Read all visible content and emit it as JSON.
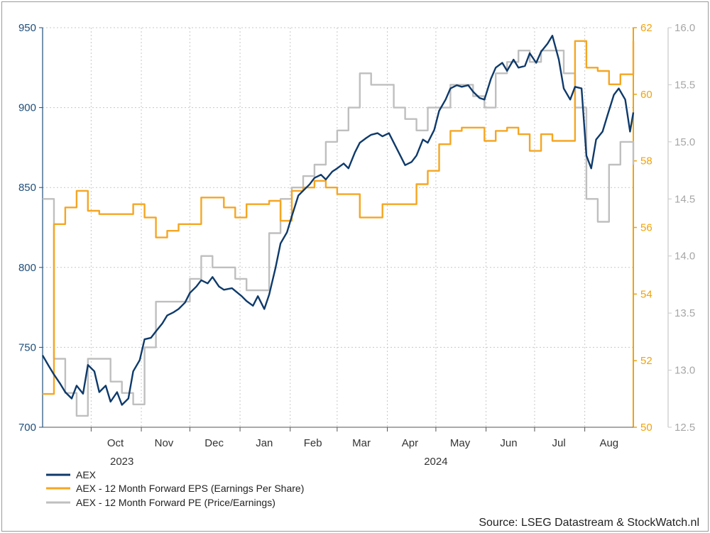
{
  "chart_data": {
    "type": "line",
    "x_axis": {
      "month_labels": [
        "Oct",
        "Nov",
        "Dec",
        "Jan",
        "Feb",
        "Mar",
        "Apr",
        "May",
        "Jun",
        "Jul",
        "Aug"
      ],
      "year_labels": [
        "2023",
        "2024"
      ],
      "range": [
        "2023-09-01",
        "2024-08-31"
      ]
    },
    "y_axes": {
      "left": {
        "series": "AEX",
        "ticks": [
          "700",
          "750",
          "800",
          "850",
          "900",
          "950"
        ],
        "range": [
          700,
          950
        ],
        "color": "#1f4e79"
      },
      "right1": {
        "series": "EPS",
        "ticks": [
          "50",
          "52",
          "54",
          "56",
          "58",
          "60",
          "62"
        ],
        "range": [
          50,
          62
        ],
        "color": "#f0a30a"
      },
      "right2": {
        "series": "PE",
        "ticks": [
          "12.5",
          "13.0",
          "13.5",
          "14.0",
          "14.5",
          "15.0",
          "15.5",
          "16.0"
        ],
        "range": [
          12.5,
          16.0
        ],
        "color": "#a6a6a6"
      }
    },
    "grid": true,
    "legend_position": "bottom-left",
    "series": [
      {
        "name": "AEX",
        "axis": "left",
        "color": "#0e3a6b",
        "points": [
          [
            "2023-09-01",
            745
          ],
          [
            "2023-09-05",
            738
          ],
          [
            "2023-09-08",
            733
          ],
          [
            "2023-09-12",
            727
          ],
          [
            "2023-09-15",
            722
          ],
          [
            "2023-09-19",
            718
          ],
          [
            "2023-09-22",
            726
          ],
          [
            "2023-09-26",
            721
          ],
          [
            "2023-09-29",
            739
          ],
          [
            "2023-10-03",
            735
          ],
          [
            "2023-10-06",
            722
          ],
          [
            "2023-10-10",
            726
          ],
          [
            "2023-10-13",
            716
          ],
          [
            "2023-10-17",
            722
          ],
          [
            "2023-10-20",
            714
          ],
          [
            "2023-10-24",
            718
          ],
          [
            "2023-10-27",
            735
          ],
          [
            "2023-10-31",
            742
          ],
          [
            "2023-11-03",
            755
          ],
          [
            "2023-11-07",
            756
          ],
          [
            "2023-11-10",
            760
          ],
          [
            "2023-11-14",
            765
          ],
          [
            "2023-11-17",
            770
          ],
          [
            "2023-11-21",
            772
          ],
          [
            "2023-11-24",
            774
          ],
          [
            "2023-11-28",
            778
          ],
          [
            "2023-12-01",
            784
          ],
          [
            "2023-12-05",
            788
          ],
          [
            "2023-12-08",
            792
          ],
          [
            "2023-12-12",
            790
          ],
          [
            "2023-12-15",
            794
          ],
          [
            "2023-12-19",
            788
          ],
          [
            "2023-12-22",
            786
          ],
          [
            "2023-12-27",
            787
          ],
          [
            "2024-01-02",
            782
          ],
          [
            "2024-01-05",
            779
          ],
          [
            "2024-01-09",
            776
          ],
          [
            "2024-01-12",
            782
          ],
          [
            "2024-01-16",
            774
          ],
          [
            "2024-01-19",
            783
          ],
          [
            "2024-01-23",
            800
          ],
          [
            "2024-01-26",
            815
          ],
          [
            "2024-01-30",
            822
          ],
          [
            "2024-02-02",
            832
          ],
          [
            "2024-02-06",
            845
          ],
          [
            "2024-02-09",
            848
          ],
          [
            "2024-02-13",
            852
          ],
          [
            "2024-02-16",
            856
          ],
          [
            "2024-02-20",
            858
          ],
          [
            "2024-02-23",
            855
          ],
          [
            "2024-02-27",
            860
          ],
          [
            "2024-03-01",
            862
          ],
          [
            "2024-03-05",
            865
          ],
          [
            "2024-03-08",
            862
          ],
          [
            "2024-03-12",
            872
          ],
          [
            "2024-03-15",
            878
          ],
          [
            "2024-03-19",
            881
          ],
          [
            "2024-03-22",
            883
          ],
          [
            "2024-03-26",
            884
          ],
          [
            "2024-03-29",
            882
          ],
          [
            "2024-04-02",
            884
          ],
          [
            "2024-04-05",
            878
          ],
          [
            "2024-04-09",
            870
          ],
          [
            "2024-04-12",
            864
          ],
          [
            "2024-04-16",
            866
          ],
          [
            "2024-04-19",
            870
          ],
          [
            "2024-04-23",
            880
          ],
          [
            "2024-04-26",
            878
          ],
          [
            "2024-04-30",
            886
          ],
          [
            "2024-05-03",
            898
          ],
          [
            "2024-05-07",
            905
          ],
          [
            "2024-05-10",
            912
          ],
          [
            "2024-05-14",
            914
          ],
          [
            "2024-05-17",
            913
          ],
          [
            "2024-05-21",
            914
          ],
          [
            "2024-05-24",
            910
          ],
          [
            "2024-05-28",
            906
          ],
          [
            "2024-05-31",
            905
          ],
          [
            "2024-06-04",
            918
          ],
          [
            "2024-06-07",
            925
          ],
          [
            "2024-06-11",
            928
          ],
          [
            "2024-06-14",
            923
          ],
          [
            "2024-06-18",
            930
          ],
          [
            "2024-06-21",
            925
          ],
          [
            "2024-06-25",
            926
          ],
          [
            "2024-06-28",
            934
          ],
          [
            "2024-07-02",
            928
          ],
          [
            "2024-07-05",
            935
          ],
          [
            "2024-07-09",
            940
          ],
          [
            "2024-07-12",
            945
          ],
          [
            "2024-07-16",
            930
          ],
          [
            "2024-07-19",
            912
          ],
          [
            "2024-07-23",
            905
          ],
          [
            "2024-07-26",
            913
          ],
          [
            "2024-07-30",
            912
          ],
          [
            "2024-08-02",
            870
          ],
          [
            "2024-08-05",
            862
          ],
          [
            "2024-08-08",
            880
          ],
          [
            "2024-08-12",
            885
          ],
          [
            "2024-08-15",
            895
          ],
          [
            "2024-08-19",
            908
          ],
          [
            "2024-08-22",
            912
          ],
          [
            "2024-08-26",
            905
          ],
          [
            "2024-08-29",
            885
          ],
          [
            "2024-08-31",
            897
          ]
        ]
      },
      {
        "name": "AEX - 12 Month Forward EPS (Earnings Per Share)",
        "axis": "right1",
        "color": "#f5a623",
        "points": [
          [
            "2023-09-01",
            51.0
          ],
          [
            "2023-09-08",
            56.1
          ],
          [
            "2023-09-15",
            56.6
          ],
          [
            "2023-09-22",
            57.1
          ],
          [
            "2023-09-29",
            56.5
          ],
          [
            "2023-10-06",
            56.4
          ],
          [
            "2023-10-13",
            56.4
          ],
          [
            "2023-10-20",
            56.4
          ],
          [
            "2023-10-27",
            56.7
          ],
          [
            "2023-11-03",
            56.3
          ],
          [
            "2023-11-10",
            55.7
          ],
          [
            "2023-11-17",
            55.9
          ],
          [
            "2023-11-24",
            56.1
          ],
          [
            "2023-12-01",
            56.1
          ],
          [
            "2023-12-08",
            56.9
          ],
          [
            "2023-12-15",
            56.9
          ],
          [
            "2023-12-22",
            56.6
          ],
          [
            "2023-12-29",
            56.3
          ],
          [
            "2024-01-05",
            56.7
          ],
          [
            "2024-01-12",
            56.7
          ],
          [
            "2024-01-19",
            56.8
          ],
          [
            "2024-01-26",
            56.2
          ],
          [
            "2024-02-02",
            57.1
          ],
          [
            "2024-02-09",
            57.2
          ],
          [
            "2024-02-16",
            57.4
          ],
          [
            "2024-02-23",
            57.2
          ],
          [
            "2024-03-01",
            57.0
          ],
          [
            "2024-03-08",
            57.0
          ],
          [
            "2024-03-15",
            56.3
          ],
          [
            "2024-03-22",
            56.3
          ],
          [
            "2024-03-29",
            56.7
          ],
          [
            "2024-04-05",
            56.7
          ],
          [
            "2024-04-12",
            56.7
          ],
          [
            "2024-04-19",
            57.3
          ],
          [
            "2024-04-26",
            57.7
          ],
          [
            "2024-05-03",
            58.5
          ],
          [
            "2024-05-10",
            58.9
          ],
          [
            "2024-05-17",
            59.0
          ],
          [
            "2024-05-24",
            59.0
          ],
          [
            "2024-05-31",
            58.6
          ],
          [
            "2024-06-07",
            58.9
          ],
          [
            "2024-06-14",
            59.0
          ],
          [
            "2024-06-21",
            58.8
          ],
          [
            "2024-06-28",
            58.3
          ],
          [
            "2024-07-05",
            58.8
          ],
          [
            "2024-07-12",
            58.6
          ],
          [
            "2024-07-19",
            58.6
          ],
          [
            "2024-07-26",
            61.6
          ],
          [
            "2024-08-02",
            60.8
          ],
          [
            "2024-08-09",
            60.7
          ],
          [
            "2024-08-16",
            60.3
          ],
          [
            "2024-08-23",
            60.6
          ],
          [
            "2024-08-31",
            61.6
          ]
        ]
      },
      {
        "name": "AEX - 12 Month Forward PE (Price/Earnings)",
        "axis": "right2",
        "color": "#bfbfbf",
        "points": [
          [
            "2023-09-01",
            14.5
          ],
          [
            "2023-09-08",
            13.1
          ],
          [
            "2023-09-15",
            12.8
          ],
          [
            "2023-09-22",
            12.6
          ],
          [
            "2023-09-29",
            13.1
          ],
          [
            "2023-10-06",
            13.1
          ],
          [
            "2023-10-13",
            12.9
          ],
          [
            "2023-10-20",
            12.8
          ],
          [
            "2023-10-27",
            12.7
          ],
          [
            "2023-11-03",
            13.2
          ],
          [
            "2023-11-10",
            13.6
          ],
          [
            "2023-11-17",
            13.6
          ],
          [
            "2023-11-24",
            13.6
          ],
          [
            "2023-12-01",
            13.8
          ],
          [
            "2023-12-08",
            14.0
          ],
          [
            "2023-12-15",
            13.9
          ],
          [
            "2023-12-22",
            13.9
          ],
          [
            "2023-12-29",
            13.8
          ],
          [
            "2024-01-05",
            13.7
          ],
          [
            "2024-01-12",
            13.7
          ],
          [
            "2024-01-19",
            14.2
          ],
          [
            "2024-01-26",
            14.5
          ],
          [
            "2024-02-02",
            14.6
          ],
          [
            "2024-02-09",
            14.7
          ],
          [
            "2024-02-16",
            14.8
          ],
          [
            "2024-02-23",
            15.0
          ],
          [
            "2024-03-01",
            15.1
          ],
          [
            "2024-03-08",
            15.3
          ],
          [
            "2024-03-15",
            15.6
          ],
          [
            "2024-03-22",
            15.5
          ],
          [
            "2024-03-29",
            15.5
          ],
          [
            "2024-04-05",
            15.3
          ],
          [
            "2024-04-12",
            15.2
          ],
          [
            "2024-04-19",
            15.1
          ],
          [
            "2024-04-26",
            15.3
          ],
          [
            "2024-05-03",
            15.3
          ],
          [
            "2024-05-10",
            15.5
          ],
          [
            "2024-05-17",
            15.5
          ],
          [
            "2024-05-24",
            15.4
          ],
          [
            "2024-05-31",
            15.3
          ],
          [
            "2024-06-07",
            15.6
          ],
          [
            "2024-06-14",
            15.7
          ],
          [
            "2024-06-21",
            15.8
          ],
          [
            "2024-06-28",
            15.7
          ],
          [
            "2024-07-05",
            15.8
          ],
          [
            "2024-07-12",
            15.8
          ],
          [
            "2024-07-19",
            15.6
          ],
          [
            "2024-07-26",
            15.3
          ],
          [
            "2024-08-02",
            14.5
          ],
          [
            "2024-08-09",
            14.3
          ],
          [
            "2024-08-16",
            14.8
          ],
          [
            "2024-08-23",
            15.0
          ],
          [
            "2024-08-31",
            14.8
          ]
        ]
      }
    ],
    "source": "Source: LSEG Datastream & StockWatch.nl"
  }
}
